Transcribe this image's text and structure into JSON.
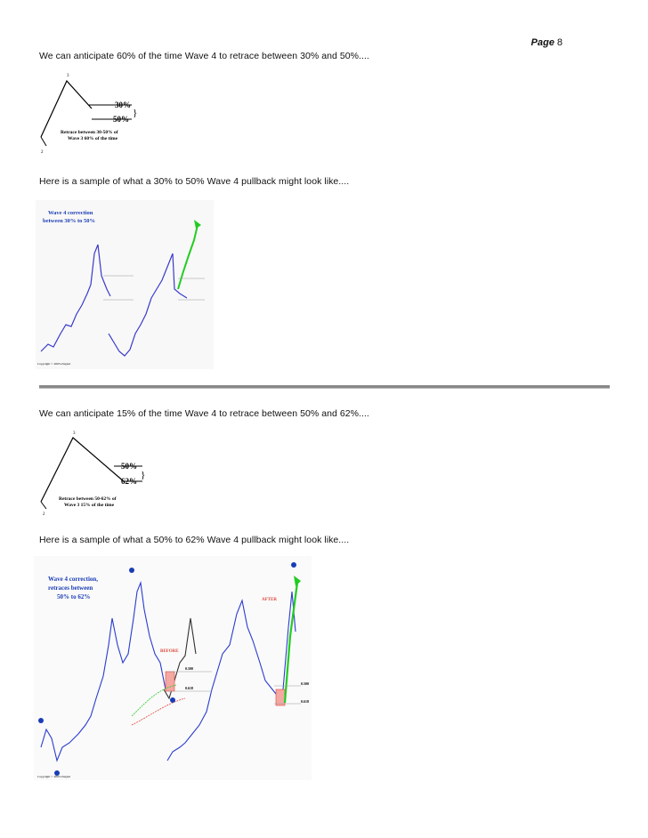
{
  "page": {
    "label": "Page",
    "number": "8"
  },
  "sections": [
    {
      "text": "We can anticipate 60% of the time Wave 4 to retrace between 30% and 50%....",
      "diagram": {
        "wave_labels": [
          "3",
          "2"
        ],
        "levels": [
          "30%",
          "50%"
        ],
        "caption_lines": [
          "Retrace between 30-50% of",
          "Wave 3 60% of the time"
        ]
      }
    },
    {
      "text": "Here is a sample of what a 30% to 50% Wave 4 pullback might look like....",
      "chart": {
        "title_lines": [
          "Wave 4 correction",
          "between 30% to 50%"
        ],
        "copyright": "Copyright © 2003 eSignal"
      }
    },
    {
      "text": "We can anticipate 15% of the time Wave 4 to retrace between 50% and 62%....",
      "diagram": {
        "wave_labels": [
          "3",
          "2"
        ],
        "levels": [
          "50%",
          "62%"
        ],
        "caption_lines": [
          "Retrace between 50-62% of",
          "Wave 3 15% of the time"
        ]
      }
    },
    {
      "text": "Here is a sample of what a 50% to 62% Wave 4 pullback might look like....",
      "chart": {
        "title_lines": [
          "Wave 4 correction,",
          "retraces between",
          "50% to 62%"
        ],
        "before_label": "BEFORE",
        "after_label": "AFTER",
        "fib_levels": [
          "0.500",
          "0.618"
        ],
        "copyright": "Copyright © 2003 eSignal"
      }
    }
  ],
  "colors": {
    "chart_title": "#1a3db5",
    "up_arrow": "#22cc22",
    "candle_blue": "#2a3ccf",
    "marker_red": "#e0453a"
  }
}
